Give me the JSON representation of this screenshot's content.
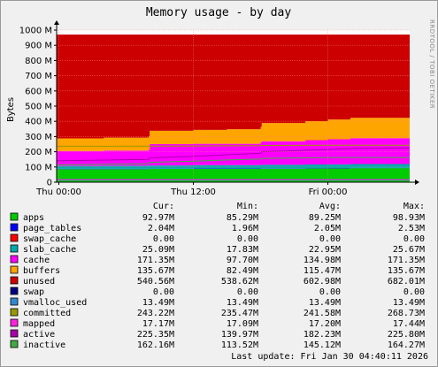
{
  "chart_data": {
    "type": "area",
    "title": "Memory usage - by day",
    "ylabel": "Bytes",
    "side_label": "RRDTOOL / TOBI OETIKER",
    "ylim": [
      0,
      1000000000
    ],
    "y_ticks": [
      {
        "value": 0,
        "label": "0"
      },
      {
        "value": 100000000,
        "label": "100 M"
      },
      {
        "value": 200000000,
        "label": "200 M"
      },
      {
        "value": 300000000,
        "label": "300 M"
      },
      {
        "value": 400000000,
        "label": "400 M"
      },
      {
        "value": 500000000,
        "label": "500 M"
      },
      {
        "value": 600000000,
        "label": "600 M"
      },
      {
        "value": 700000000,
        "label": "700 M"
      },
      {
        "value": 800000000,
        "label": "800 M"
      },
      {
        "value": 900000000,
        "label": "900 M"
      },
      {
        "value": 1000000000,
        "label": "1000 M"
      }
    ],
    "x_ticks": [
      {
        "hours": 0,
        "label": "Thu 00:00"
      },
      {
        "hours": 12,
        "label": "Thu 12:00"
      },
      {
        "hours": 24,
        "label": "Fri 00:00"
      }
    ],
    "x_range_hours": [
      -0.2,
      31.3
    ],
    "x": [
      -0.2,
      4,
      8,
      8.1,
      12,
      15,
      18,
      18.1,
      22,
      24,
      26,
      31.3
    ],
    "stack_order": [
      "apps",
      "page_tables",
      "swap_cache",
      "slab_cache",
      "cache",
      "buffers",
      "unused",
      "swap"
    ],
    "series": [
      {
        "name": "apps",
        "color": "#00cc00",
        "stacked": true,
        "values": [
          86,
          86,
          87,
          87,
          88,
          88,
          89,
          89,
          90,
          91,
          92,
          93
        ],
        "cur": "92.97M",
        "min": "85.29M",
        "avg": "89.25M",
        "max": "98.93M"
      },
      {
        "name": "page_tables",
        "color": "#0000ff",
        "stacked": true,
        "values": [
          2,
          2,
          2,
          2,
          2,
          2,
          2,
          2,
          2,
          2,
          2,
          2
        ],
        "cur": "2.04M",
        "min": "1.96M",
        "avg": "2.05M",
        "max": "2.53M"
      },
      {
        "name": "swap_cache",
        "color": "#ff0000",
        "stacked": true,
        "values": [
          0,
          0,
          0,
          0,
          0,
          0,
          0,
          0,
          0,
          0,
          0,
          0
        ],
        "cur": "0.00",
        "min": "0.00",
        "avg": "0.00",
        "max": "0.00"
      },
      {
        "name": "slab_cache",
        "color": "#00aaaa",
        "stacked": true,
        "values": [
          19,
          20,
          21,
          21,
          22,
          22,
          23,
          23,
          24,
          24,
          25,
          25
        ],
        "cur": "25.09M",
        "min": "17.83M",
        "avg": "22.95M",
        "max": "25.67M"
      },
      {
        "name": "cache",
        "color": "#ff00ff",
        "stacked": true,
        "values": [
          98,
          100,
          102,
          140,
          140,
          140,
          150,
          155,
          160,
          165,
          170,
          171
        ],
        "cur": "171.35M",
        "min": "97.70M",
        "avg": "134.98M",
        "max": "171.35M"
      },
      {
        "name": "buffers",
        "color": "#ffa500",
        "stacked": true,
        "values": [
          83,
          85,
          88,
          88,
          92,
          96,
          100,
          120,
          125,
          130,
          134,
          135
        ],
        "cur": "135.67M",
        "min": "82.49M",
        "avg": "115.47M",
        "max": "135.67M"
      },
      {
        "name": "unused",
        "color": "#cc0000",
        "stacked": true,
        "values": [
          682,
          677,
          670,
          632,
          626,
          622,
          606,
          581,
          569,
          558,
          547,
          541
        ],
        "cur": "540.56M",
        "min": "538.62M",
        "avg": "602.98M",
        "max": "682.01M"
      },
      {
        "name": "swap",
        "color": "#000080",
        "stacked": true,
        "values": [
          0,
          0,
          0,
          0,
          0,
          0,
          0,
          0,
          0,
          0,
          0,
          0
        ],
        "cur": "0.00",
        "min": "0.00",
        "avg": "0.00",
        "max": "0.00"
      },
      {
        "name": "vmalloc_used",
        "color": "#3388cc",
        "stacked": false,
        "values": [
          13.49,
          13.49,
          13.49,
          13.49,
          13.49,
          13.49,
          13.49,
          13.49,
          13.49,
          13.49,
          13.49,
          13.49
        ],
        "cur": "13.49M",
        "min": "13.49M",
        "avg": "13.49M",
        "max": "13.49M"
      },
      {
        "name": "committed",
        "color": "#999900",
        "stacked": false,
        "values": [
          236,
          236,
          237,
          237,
          238,
          239,
          240,
          241,
          242,
          243,
          243,
          243
        ],
        "cur": "243.22M",
        "min": "235.47M",
        "avg": "241.58M",
        "max": "268.73M"
      },
      {
        "name": "mapped",
        "color": "#ff22dd",
        "stacked": false,
        "values": [
          17.1,
          17.1,
          17.2,
          17.2,
          17.2,
          17.2,
          17.2,
          17.2,
          17.2,
          17.2,
          17.2,
          17.17
        ],
        "cur": "17.17M",
        "min": "17.09M",
        "avg": "17.20M",
        "max": "17.44M"
      },
      {
        "name": "active",
        "color": "#aa00aa",
        "stacked": false,
        "values": [
          140,
          145,
          150,
          160,
          170,
          180,
          190,
          200,
          210,
          215,
          222,
          225
        ],
        "cur": "225.35M",
        "min": "139.97M",
        "avg": "182.23M",
        "max": "225.80M"
      },
      {
        "name": "inactive",
        "color": "#44aa44",
        "stacked": false,
        "values": [
          114,
          118,
          122,
          130,
          138,
          146,
          152,
          156,
          160,
          162,
          162,
          162
        ],
        "cur": "162.16M",
        "min": "113.52M",
        "avg": "145.12M",
        "max": "164.27M"
      }
    ],
    "legend_headers": {
      "cur": "Cur:",
      "min": "Min:",
      "avg": "Avg:",
      "max": "Max:"
    },
    "last_update": "Last update:  Fri Jan 30 04:40:11 2026"
  }
}
